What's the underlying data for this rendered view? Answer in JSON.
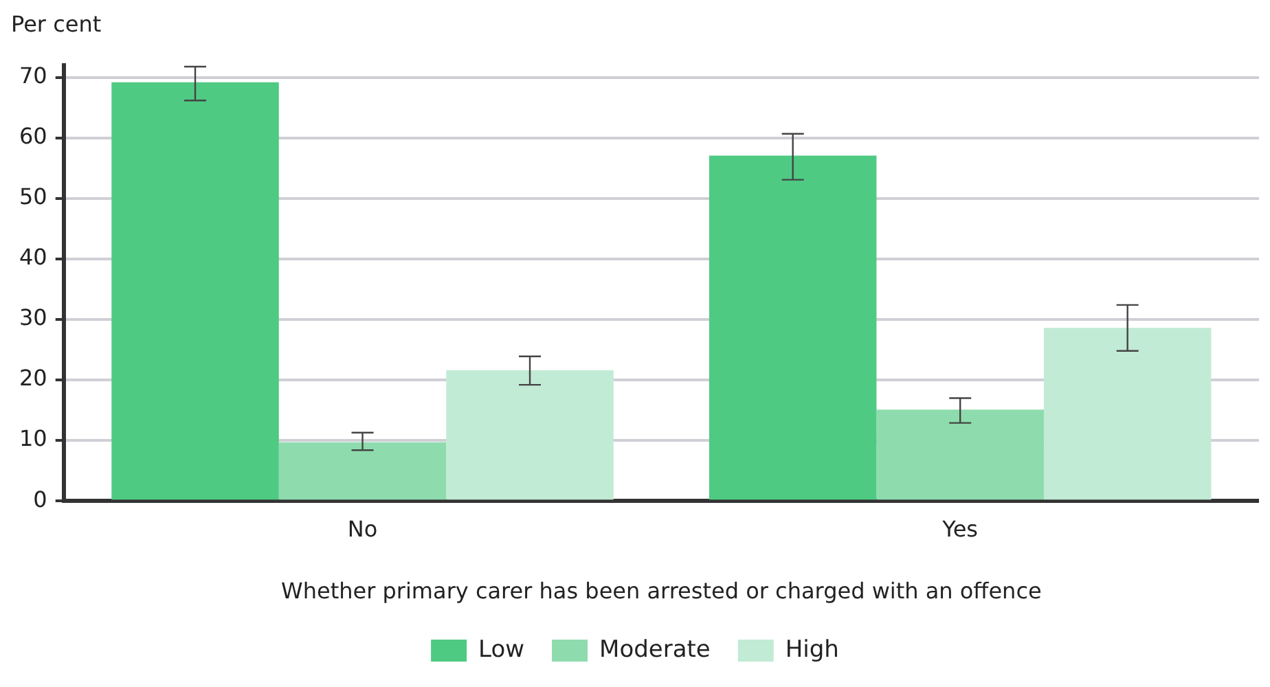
{
  "chart_data": {
    "type": "bar",
    "ylabel": "Per cent",
    "xlabel": "Whether primary carer has been arrested or charged with an offence",
    "categories": [
      "No",
      "Yes"
    ],
    "series": [
      {
        "name": "Low",
        "color": "#4fca82",
        "values": [
          69.2,
          57.1
        ],
        "errors": [
          [
            66.2,
            71.8
          ],
          [
            53.1,
            60.7
          ]
        ]
      },
      {
        "name": "Moderate",
        "color": "#8edcad",
        "values": [
          9.7,
          15.1
        ],
        "errors": [
          [
            8.4,
            11.3
          ],
          [
            12.9,
            17.0
          ]
        ]
      },
      {
        "name": "High",
        "color": "#c1ebd5",
        "values": [
          21.6,
          28.6
        ],
        "errors": [
          [
            19.2,
            23.9
          ],
          [
            24.8,
            32.4
          ]
        ]
      }
    ],
    "ylim": [
      0,
      72
    ],
    "yticks": [
      0,
      10,
      20,
      30,
      40,
      50,
      60,
      70
    ],
    "grid": "y",
    "legend": "bottom"
  }
}
